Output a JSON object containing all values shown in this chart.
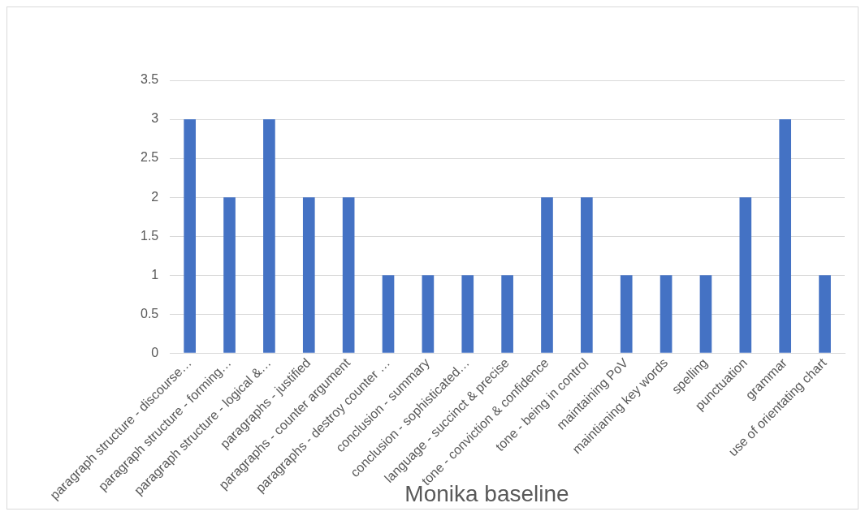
{
  "chart_data": {
    "type": "bar",
    "title": "Monika baseline",
    "categories": [
      "paragraph structure - discourse…",
      "paragraph structure - forming…",
      "paragraph structure - logical &…",
      "paragraphs - justified",
      "paragraphs - counter argument",
      "paragraphs - destroy counter …",
      "conclusion - summary",
      "conclusion - sophisticated…",
      "language - succinct & precise",
      "tone - conviction & confidence",
      "tone - being in control",
      "maintaining PoV",
      "maintianing key words",
      "spelling",
      "punctuation",
      "grammar",
      "use of orientating chart"
    ],
    "values": [
      3,
      2,
      3,
      2,
      2,
      1,
      1,
      1,
      1,
      2,
      2,
      1,
      1,
      1,
      2,
      3,
      1
    ],
    "color": "#4472c4",
    "ylim": [
      0,
      3.5
    ],
    "yticks": [
      0,
      0.5,
      1,
      1.5,
      2,
      2.5,
      3,
      3.5
    ],
    "grid": "y",
    "legend": false
  }
}
